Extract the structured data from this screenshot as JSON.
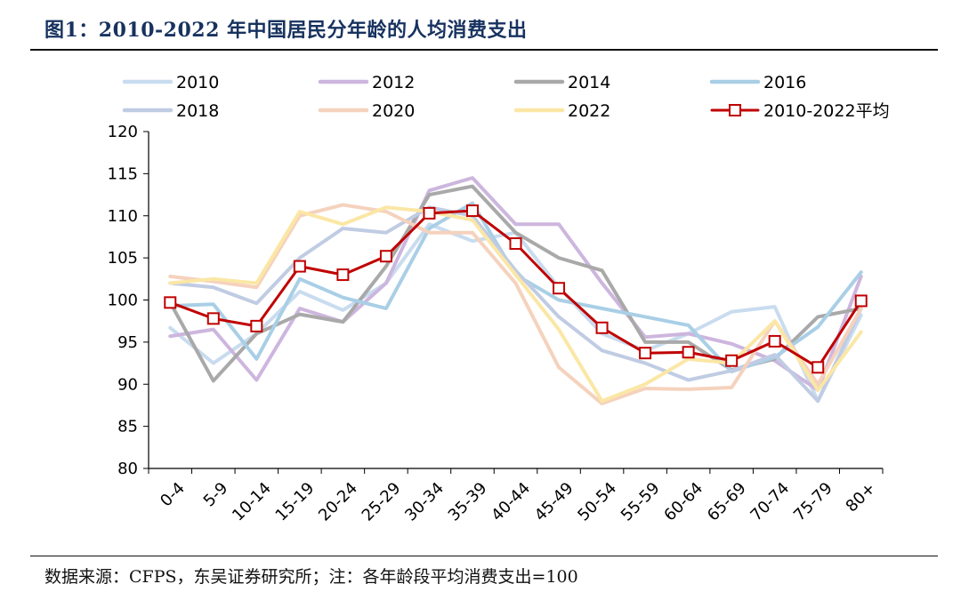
{
  "figure": {
    "title": "图1：2010-2022 年中国居民分年龄的人均消费支出",
    "source": "数据来源：CFPS，东吴证券研究所；注：各年龄段平均消费支出=100"
  },
  "chart_data": {
    "type": "line",
    "title": "图1：2010-2022 年中国居民分年龄的人均消费支出",
    "xlabel": "",
    "ylabel": "",
    "ylim": [
      80,
      120
    ],
    "yticks": [
      "80",
      "85",
      "90",
      "95",
      "100",
      "105",
      "110",
      "115",
      "120"
    ],
    "grid": false,
    "legend_position": "top",
    "categories": [
      "0-4",
      "5-9",
      "10-14",
      "15-19",
      "20-24",
      "25-29",
      "30-34",
      "35-39",
      "40-44",
      "45-49",
      "50-54",
      "55-59",
      "60-64",
      "65-69",
      "70-74",
      "75-79",
      "80+"
    ],
    "series": [
      {
        "name": "2010",
        "color": "#c9dcef",
        "values": [
          96.7,
          92.5,
          96.0,
          101.0,
          98.8,
          102.0,
          109.0,
          107.0,
          108.0,
          101.5,
          96.0,
          94.0,
          96.0,
          98.6,
          99.2,
          88.0,
          98.2
        ]
      },
      {
        "name": "2012",
        "color": "#cdb6de",
        "values": [
          95.7,
          96.5,
          90.5,
          99.0,
          97.4,
          102.0,
          113.0,
          114.5,
          109.0,
          109.0,
          102.0,
          95.6,
          96.0,
          94.8,
          92.8,
          89.3,
          102.8
        ]
      },
      {
        "name": "2014",
        "color": "#a9a9a9",
        "values": [
          99.7,
          90.4,
          96.0,
          98.3,
          97.4,
          104.0,
          112.5,
          113.5,
          108.0,
          105.0,
          103.5,
          95.0,
          95.0,
          91.7,
          93.0,
          98.0,
          99.0
        ]
      },
      {
        "name": "2016",
        "color": "#a9cfe6",
        "values": [
          99.3,
          99.5,
          93.0,
          102.5,
          100.3,
          99.0,
          108.5,
          111.5,
          103.0,
          100.0,
          99.0,
          98.0,
          97.0,
          91.5,
          93.2,
          96.8,
          103.3
        ]
      },
      {
        "name": "2018",
        "color": "#c0cce3",
        "values": [
          102.0,
          101.5,
          99.6,
          105.0,
          108.5,
          108.0,
          111.0,
          110.0,
          103.5,
          98.0,
          94.0,
          92.5,
          90.5,
          91.6,
          93.5,
          88.0,
          99.0
        ]
      },
      {
        "name": "2020",
        "color": "#f5d2bd",
        "values": [
          102.8,
          102.2,
          101.5,
          110.0,
          111.3,
          110.5,
          108.0,
          108.0,
          102.0,
          92.0,
          87.7,
          89.5,
          89.4,
          89.6,
          97.5,
          90.0,
          99.0
        ]
      },
      {
        "name": "2022",
        "color": "#fbe7a5",
        "values": [
          102.0,
          102.5,
          102.0,
          110.5,
          109.0,
          111.0,
          110.5,
          109.5,
          103.0,
          96.5,
          88.0,
          90.0,
          93.0,
          92.5,
          97.5,
          89.3,
          96.2
        ]
      },
      {
        "name": "2010-2022平均",
        "color": "#c00000",
        "marker": "square",
        "values": [
          99.7,
          97.8,
          96.9,
          104.0,
          103.0,
          105.2,
          110.3,
          110.6,
          106.7,
          101.4,
          96.7,
          93.7,
          93.8,
          92.8,
          95.1,
          92.0,
          99.9
        ]
      }
    ]
  }
}
